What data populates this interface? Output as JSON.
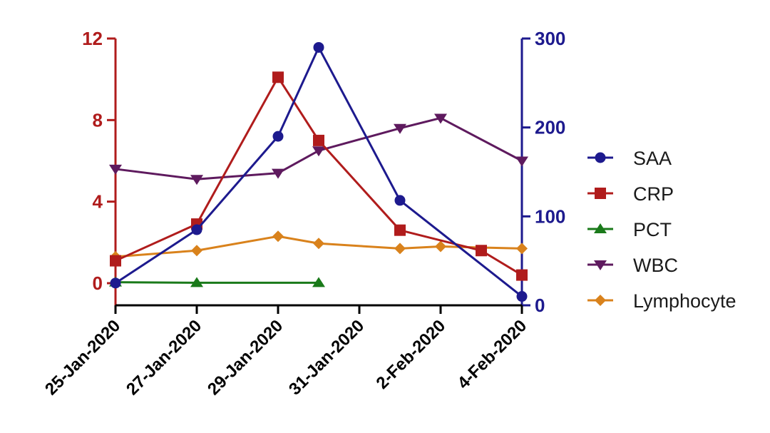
{
  "chart_data": {
    "type": "line",
    "x_categories": [
      "25-Jan-2020",
      "27-Jan-2020",
      "29-Jan-2020",
      "31-Jan-2020",
      "2-Feb-2020",
      "4-Feb-2020"
    ],
    "x_range": [
      "2020-01-25",
      "2020-02-04"
    ],
    "left_axis": {
      "ticks": [
        "0",
        "4",
        "8",
        "12"
      ],
      "range": [
        -1,
        12
      ],
      "color": "#b01c1c"
    },
    "right_axis": {
      "ticks": [
        "0",
        "100",
        "200",
        "300"
      ],
      "range": [
        0,
        300
      ],
      "color": "#1d1a8e"
    },
    "series": [
      {
        "name": "SAA",
        "axis": "right",
        "color": "#1d1a8e",
        "marker": "circle",
        "x": [
          "2020-01-25",
          "2020-01-27",
          "2020-01-29",
          "2020-01-30",
          "2020-02-01",
          "2020-02-04"
        ],
        "values": [
          25,
          85,
          190,
          290,
          118,
          10
        ]
      },
      {
        "name": "CRP",
        "axis": "left",
        "color": "#b01c1c",
        "marker": "square",
        "x": [
          "2020-01-25",
          "2020-01-27",
          "2020-01-29",
          "2020-01-30",
          "2020-02-01",
          "2020-02-03",
          "2020-02-04"
        ],
        "values": [
          1.1,
          2.9,
          10.1,
          7.0,
          2.6,
          1.6,
          0.4
        ]
      },
      {
        "name": "PCT",
        "axis": "left",
        "color": "#1a7a1a",
        "marker": "triangle-up",
        "x": [
          "2020-01-25",
          "2020-01-27",
          "2020-01-30"
        ],
        "values": [
          0.05,
          0.02,
          0.02
        ]
      },
      {
        "name": "WBC",
        "axis": "left",
        "color": "#5e1a5e",
        "marker": "triangle-down",
        "x": [
          "2020-01-25",
          "2020-01-27",
          "2020-01-29",
          "2020-01-30",
          "2020-02-01",
          "2020-02-02",
          "2020-02-04"
        ],
        "values": [
          5.6,
          5.1,
          5.4,
          6.5,
          7.6,
          8.1,
          6.0
        ]
      },
      {
        "name": "Lymphocyte",
        "axis": "left",
        "color": "#d9821c",
        "marker": "diamond",
        "x": [
          "2020-01-25",
          "2020-01-27",
          "2020-01-29",
          "2020-01-30",
          "2020-02-01",
          "2020-02-02",
          "2020-02-04"
        ],
        "values": [
          1.3,
          1.6,
          2.3,
          1.95,
          1.7,
          1.8,
          1.7
        ]
      }
    ],
    "legend_position": "right",
    "grid": false
  }
}
